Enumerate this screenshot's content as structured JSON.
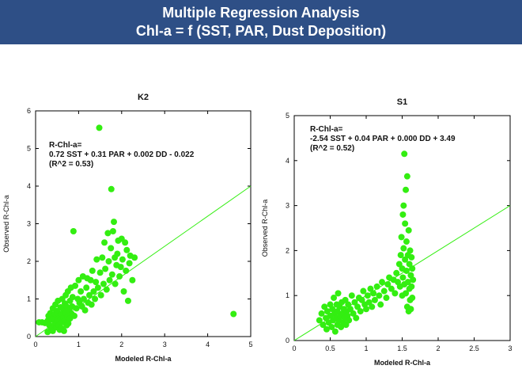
{
  "header": {
    "title_line1": "Multiple Regression Analysis",
    "title_line2": "Chl-a = f (SST, PAR, Dust Deposition)"
  },
  "chart_data": [
    {
      "type": "scatter",
      "title": "K2",
      "xlabel": "Modeled R-Chl-a",
      "ylabel": "Observed R-Chl-a",
      "xlim": [
        0,
        5
      ],
      "ylim": [
        0,
        6
      ],
      "xticks": [
        "0",
        "1",
        "2",
        "3",
        "4",
        "5"
      ],
      "yticks": [
        "0",
        "1",
        "2",
        "3",
        "4",
        "5",
        "6"
      ],
      "annotation": [
        "R-Chl-a=",
        "0.72 SST + 0.31 PAR + 0.002 DD - 0.022",
        "(R^2 = 0.53)"
      ],
      "color": "#33ee11",
      "fit_line": [
        [
          0,
          0
        ],
        [
          5,
          4.0
        ]
      ],
      "points": [
        [
          0.08,
          0.38
        ],
        [
          0.15,
          0.38
        ],
        [
          0.22,
          0.36
        ],
        [
          0.28,
          0.12
        ],
        [
          0.28,
          0.42
        ],
        [
          0.3,
          0.55
        ],
        [
          0.32,
          0.3
        ],
        [
          0.34,
          0.62
        ],
        [
          0.36,
          0.2
        ],
        [
          0.38,
          0.45
        ],
        [
          0.4,
          0.15
        ],
        [
          0.4,
          0.75
        ],
        [
          0.42,
          0.5
        ],
        [
          0.44,
          0.32
        ],
        [
          0.45,
          0.6
        ],
        [
          0.46,
          0.85
        ],
        [
          0.48,
          0.25
        ],
        [
          0.5,
          0.42
        ],
        [
          0.5,
          0.68
        ],
        [
          0.52,
          0.95
        ],
        [
          0.54,
          0.3
        ],
        [
          0.55,
          0.55
        ],
        [
          0.56,
          0.18
        ],
        [
          0.58,
          0.78
        ],
        [
          0.58,
          0.45
        ],
        [
          0.6,
          0.6
        ],
        [
          0.6,
          0.22
        ],
        [
          0.62,
          1.0
        ],
        [
          0.62,
          0.38
        ],
        [
          0.64,
          0.72
        ],
        [
          0.65,
          0.5
        ],
        [
          0.66,
          0.15
        ],
        [
          0.68,
          0.88
        ],
        [
          0.68,
          0.42
        ],
        [
          0.7,
          0.62
        ],
        [
          0.7,
          1.1
        ],
        [
          0.72,
          0.3
        ],
        [
          0.72,
          0.8
        ],
        [
          0.74,
          0.52
        ],
        [
          0.75,
          1.2
        ],
        [
          0.76,
          0.35
        ],
        [
          0.78,
          0.7
        ],
        [
          0.8,
          0.95
        ],
        [
          0.8,
          0.48
        ],
        [
          0.82,
          1.3
        ],
        [
          0.84,
          0.6
        ],
        [
          0.85,
          0.8
        ],
        [
          0.86,
          1.05
        ],
        [
          0.88,
          2.8
        ],
        [
          0.9,
          0.55
        ],
        [
          0.92,
          1.35
        ],
        [
          0.95,
          0.75
        ],
        [
          0.98,
          1.0
        ],
        [
          1.0,
          1.5
        ],
        [
          1.02,
          0.9
        ],
        [
          1.05,
          1.2
        ],
        [
          1.08,
          0.8
        ],
        [
          1.1,
          1.6
        ],
        [
          1.12,
          1.0
        ],
        [
          1.15,
          0.7
        ],
        [
          1.18,
          1.3
        ],
        [
          1.2,
          1.55
        ],
        [
          1.22,
          0.9
        ],
        [
          1.25,
          1.1
        ],
        [
          1.28,
          1.5
        ],
        [
          1.3,
          0.85
        ],
        [
          1.32,
          1.75
        ],
        [
          1.35,
          1.2
        ],
        [
          1.38,
          1.0
        ],
        [
          1.4,
          1.45
        ],
        [
          1.42,
          2.05
        ],
        [
          1.45,
          1.3
        ],
        [
          1.48,
          5.55
        ],
        [
          1.5,
          1.7
        ],
        [
          1.52,
          1.1
        ],
        [
          1.55,
          2.1
        ],
        [
          1.58,
          1.4
        ],
        [
          1.6,
          2.5
        ],
        [
          1.62,
          1.8
        ],
        [
          1.65,
          1.25
        ],
        [
          1.68,
          2.75
        ],
        [
          1.7,
          2.0
        ],
        [
          1.72,
          1.5
        ],
        [
          1.75,
          2.35
        ],
        [
          1.76,
          3.92
        ],
        [
          1.78,
          1.65
        ],
        [
          1.8,
          2.8
        ],
        [
          1.82,
          3.05
        ],
        [
          1.84,
          2.1
        ],
        [
          1.85,
          1.4
        ],
        [
          1.88,
          1.9
        ],
        [
          1.9,
          2.2
        ],
        [
          1.92,
          2.55
        ],
        [
          1.95,
          1.6
        ],
        [
          1.98,
          1.85
        ],
        [
          2.0,
          2.6
        ],
        [
          2.02,
          2.05
        ],
        [
          2.05,
          1.2
        ],
        [
          2.08,
          2.5
        ],
        [
          2.1,
          1.75
        ],
        [
          2.12,
          2.3
        ],
        [
          2.15,
          0.95
        ],
        [
          2.18,
          1.95
        ],
        [
          2.2,
          2.15
        ],
        [
          2.25,
          1.5
        ],
        [
          2.3,
          2.1
        ],
        [
          4.6,
          0.6
        ]
      ]
    },
    {
      "type": "scatter",
      "title": "S1",
      "xlabel": "Modeled R-Chl-a",
      "ylabel": "Observed R-Chl-a",
      "xlim": [
        0,
        3
      ],
      "ylim": [
        0,
        5
      ],
      "xticks": [
        "0",
        "0.5",
        "1",
        "1.5",
        "2",
        "2.5",
        "3"
      ],
      "yticks": [
        "0",
        "1",
        "2",
        "3",
        "4",
        "5"
      ],
      "annotation": [
        "R-Chl-a=",
        "-2.54 SST + 0.04 PAR + 0.000 DD + 3.49",
        "(R^2 = 0.52)"
      ],
      "color": "#33ee11",
      "fit_line": [
        [
          0,
          0
        ],
        [
          3,
          3.0
        ]
      ],
      "points": [
        [
          0.35,
          0.45
        ],
        [
          0.38,
          0.6
        ],
        [
          0.4,
          0.35
        ],
        [
          0.42,
          0.75
        ],
        [
          0.44,
          0.5
        ],
        [
          0.45,
          0.25
        ],
        [
          0.46,
          0.65
        ],
        [
          0.48,
          0.4
        ],
        [
          0.5,
          0.8
        ],
        [
          0.5,
          0.55
        ],
        [
          0.52,
          0.3
        ],
        [
          0.53,
          0.7
        ],
        [
          0.54,
          0.45
        ],
        [
          0.55,
          0.95
        ],
        [
          0.56,
          0.6
        ],
        [
          0.57,
          0.2
        ],
        [
          0.58,
          0.5
        ],
        [
          0.59,
          0.8
        ],
        [
          0.6,
          0.35
        ],
        [
          0.6,
          0.65
        ],
        [
          0.61,
          1.05
        ],
        [
          0.62,
          0.45
        ],
        [
          0.63,
          0.75
        ],
        [
          0.64,
          0.55
        ],
        [
          0.65,
          0.3
        ],
        [
          0.66,
          0.85
        ],
        [
          0.67,
          0.6
        ],
        [
          0.68,
          0.4
        ],
        [
          0.69,
          0.7
        ],
        [
          0.7,
          0.5
        ],
        [
          0.71,
          0.9
        ],
        [
          0.72,
          0.35
        ],
        [
          0.73,
          0.65
        ],
        [
          0.74,
          0.55
        ],
        [
          0.75,
          0.8
        ],
        [
          0.76,
          0.45
        ],
        [
          0.78,
          0.7
        ],
        [
          0.8,
          1.0
        ],
        [
          0.82,
          0.6
        ],
        [
          0.84,
          0.85
        ],
        [
          0.86,
          0.5
        ],
        [
          0.88,
          0.75
        ],
        [
          0.9,
          0.95
        ],
        [
          0.92,
          0.65
        ],
        [
          0.94,
          0.9
        ],
        [
          0.96,
          1.1
        ],
        [
          0.98,
          0.8
        ],
        [
          1.0,
          0.7
        ],
        [
          1.02,
          1.0
        ],
        [
          1.04,
          0.85
        ],
        [
          1.06,
          1.15
        ],
        [
          1.08,
          0.75
        ],
        [
          1.1,
          1.05
        ],
        [
          1.12,
          0.9
        ],
        [
          1.15,
          1.2
        ],
        [
          1.18,
          1.0
        ],
        [
          1.2,
          0.8
        ],
        [
          1.22,
          1.3
        ],
        [
          1.25,
          1.1
        ],
        [
          1.28,
          0.95
        ],
        [
          1.3,
          1.25
        ],
        [
          1.32,
          1.4
        ],
        [
          1.35,
          1.15
        ],
        [
          1.38,
          1.35
        ],
        [
          1.4,
          1.05
        ],
        [
          1.42,
          1.5
        ],
        [
          1.44,
          1.3
        ],
        [
          1.46,
          1.7
        ],
        [
          1.47,
          1.2
        ],
        [
          1.48,
          1.9
        ],
        [
          1.49,
          2.3
        ],
        [
          1.5,
          1.0
        ],
        [
          1.5,
          1.6
        ],
        [
          1.51,
          2.8
        ],
        [
          1.51,
          1.4
        ],
        [
          1.52,
          3.0
        ],
        [
          1.52,
          2.05
        ],
        [
          1.53,
          4.15
        ],
        [
          1.53,
          1.25
        ],
        [
          1.54,
          1.8
        ],
        [
          1.54,
          2.6
        ],
        [
          1.55,
          3.35
        ],
        [
          1.55,
          1.05
        ],
        [
          1.56,
          1.55
        ],
        [
          1.56,
          2.2
        ],
        [
          1.57,
          3.65
        ],
        [
          1.57,
          0.75
        ],
        [
          1.58,
          1.9
        ],
        [
          1.58,
          1.3
        ],
        [
          1.59,
          2.45
        ],
        [
          1.59,
          0.65
        ],
        [
          1.6,
          1.7
        ],
        [
          1.6,
          1.15
        ],
        [
          1.61,
          2.0
        ],
        [
          1.61,
          0.9
        ],
        [
          1.62,
          1.45
        ],
        [
          1.62,
          0.7
        ],
        [
          1.63,
          1.85
        ],
        [
          1.63,
          1.2
        ],
        [
          1.64,
          0.95
        ],
        [
          1.64,
          1.6
        ],
        [
          1.65,
          1.35
        ]
      ]
    }
  ]
}
